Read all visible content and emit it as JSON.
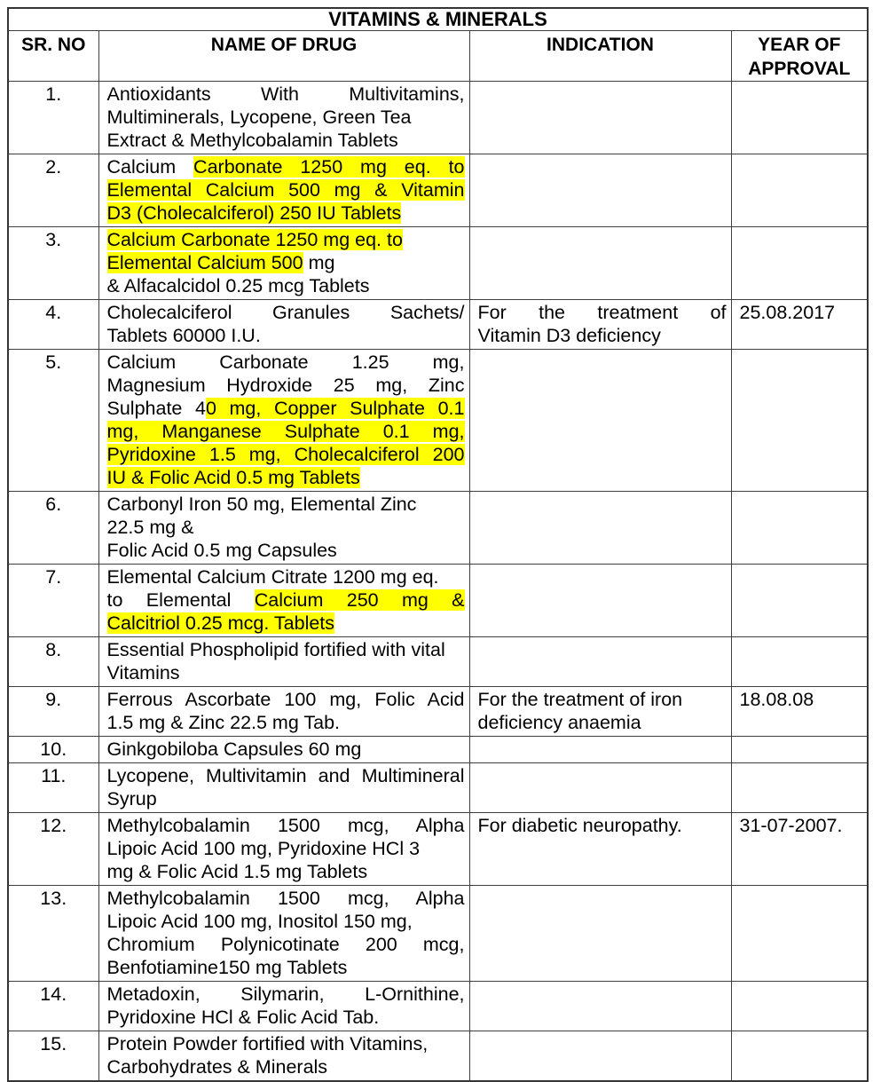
{
  "title": "VITAMINS & MINERALS",
  "header": {
    "sr_no": "SR. NO",
    "drug": "NAME OF DRUG",
    "indication": "INDICATION",
    "year": "YEAR OF APPROVAL"
  },
  "colors": {
    "highlight": "#ffff00",
    "border": "#3f3f3f",
    "text": "#000000"
  },
  "rows": [
    {
      "sr": "1.",
      "drug": [
        {
          "j": 1,
          "parts": [
            [
              "Antioxidants With Multivitamins,",
              0
            ]
          ]
        },
        {
          "j": 0,
          "parts": [
            [
              "Multiminerals, Lycopene, Green Tea",
              0
            ]
          ]
        },
        {
          "j": 0,
          "parts": [
            [
              "Extract & Methylcobalamin Tablets",
              0
            ]
          ]
        }
      ],
      "indication": [],
      "year": ""
    },
    {
      "sr": "2.",
      "drug": [
        {
          "j": 1,
          "parts": [
            [
              "Calcium ",
              0
            ],
            [
              "Carbonate 1250 mg eq. to",
              1
            ]
          ]
        },
        {
          "j": 1,
          "parts": [
            [
              "Elemental Calcium 500 mg & Vitamin",
              1
            ]
          ]
        },
        {
          "j": 0,
          "parts": [
            [
              "D3 (Cholecalciferol) 250 IU Tablets",
              1
            ]
          ]
        }
      ],
      "indication": [],
      "year": ""
    },
    {
      "sr": "3.",
      "drug": [
        {
          "j": 0,
          "parts": [
            [
              "Calcium Carbonate 1250 mg eq. to",
              1
            ]
          ]
        },
        {
          "j": 0,
          "parts": [
            [
              "Elemental Calcium 500",
              1
            ],
            [
              " mg",
              0
            ]
          ]
        },
        {
          "j": 0,
          "parts": [
            [
              "& Alfacalcidol 0.25 mcg Tablets",
              0
            ]
          ]
        }
      ],
      "indication": [],
      "year": ""
    },
    {
      "sr": "4.",
      "drug": [
        {
          "j": 1,
          "parts": [
            [
              "Cholecalciferol Granules Sachets/",
              0
            ]
          ]
        },
        {
          "j": 0,
          "parts": [
            [
              "Tablets 60000 I.U.",
              0
            ]
          ]
        }
      ],
      "indication": [
        {
          "j": 1,
          "parts": [
            [
              "For the treatment of",
              0
            ]
          ]
        },
        {
          "j": 0,
          "parts": [
            [
              "Vitamin D3 deficiency",
              0
            ]
          ]
        }
      ],
      "year": "25.08.2017"
    },
    {
      "sr": "5.",
      "drug": [
        {
          "j": 1,
          "parts": [
            [
              "Calcium Carbonate 1.25 mg,",
              0
            ]
          ]
        },
        {
          "j": 1,
          "parts": [
            [
              "Magnesium Hydroxide 25 mg, Zinc",
              0
            ]
          ]
        },
        {
          "j": 1,
          "parts": [
            [
              "Sulphate 4",
              0
            ],
            [
              "0 mg, Copper Sulphate 0.1",
              1
            ]
          ]
        },
        {
          "j": 1,
          "parts": [
            [
              "mg, Manganese Sulphate 0.1 mg,",
              1
            ]
          ]
        },
        {
          "j": 1,
          "parts": [
            [
              "Pyridoxine 1.5 mg, Cholecalciferol 200",
              1
            ]
          ]
        },
        {
          "j": 0,
          "parts": [
            [
              "IU & Folic Acid 0.5 mg Tablets",
              1
            ]
          ]
        }
      ],
      "indication": [],
      "year": ""
    },
    {
      "sr": "6.",
      "drug": [
        {
          "j": 0,
          "parts": [
            [
              "Carbonyl Iron 50 mg, Elemental Zinc",
              0
            ]
          ]
        },
        {
          "j": 0,
          "parts": [
            [
              "22.5 mg &",
              0
            ]
          ]
        },
        {
          "j": 0,
          "parts": [
            [
              "Folic Acid 0.5 mg Capsules",
              0
            ]
          ]
        }
      ],
      "indication": [],
      "year": ""
    },
    {
      "sr": "7.",
      "drug": [
        {
          "j": 0,
          "parts": [
            [
              "Elemental Calcium Citrate 1200 mg eq.",
              0
            ]
          ]
        },
        {
          "j": 1,
          "parts": [
            [
              "to Elemental ",
              0
            ],
            [
              "Calcium 250 mg &",
              1
            ]
          ]
        },
        {
          "j": 0,
          "parts": [
            [
              "Calcitriol 0.25 mcg. Tablets",
              1
            ]
          ]
        }
      ],
      "indication": [],
      "year": ""
    },
    {
      "sr": "8.",
      "drug": [
        {
          "j": 0,
          "parts": [
            [
              "Essential Phospholipid fortified with vital",
              0
            ]
          ]
        },
        {
          "j": 0,
          "parts": [
            [
              "Vitamins",
              0
            ]
          ]
        }
      ],
      "indication": [],
      "year": ""
    },
    {
      "sr": "9.",
      "drug": [
        {
          "j": 1,
          "parts": [
            [
              "Ferrous Ascorbate 100 mg, Folic Acid",
              0
            ]
          ]
        },
        {
          "j": 0,
          "parts": [
            [
              "1.5 mg & Zinc 22.5 mg Tab.",
              0
            ]
          ]
        }
      ],
      "indication": [
        {
          "j": 0,
          "parts": [
            [
              "For the treatment of iron",
              0
            ]
          ]
        },
        {
          "j": 0,
          "parts": [
            [
              "deficiency anaemia",
              0
            ]
          ]
        }
      ],
      "year": "18.08.08"
    },
    {
      "sr": "10.",
      "drug": [
        {
          "j": 0,
          "parts": [
            [
              "Ginkgobiloba Capsules 60 mg",
              0
            ]
          ]
        }
      ],
      "indication": [],
      "year": ""
    },
    {
      "sr": "11.",
      "drug": [
        {
          "j": 1,
          "parts": [
            [
              "Lycopene, Multivitamin and Multimineral",
              0
            ]
          ]
        },
        {
          "j": 0,
          "parts": [
            [
              "Syrup",
              0
            ]
          ]
        }
      ],
      "indication": [],
      "year": ""
    },
    {
      "sr": "12.",
      "drug": [
        {
          "j": 1,
          "parts": [
            [
              "Methylcobalamin 1500 mcg, Alpha",
              0
            ]
          ]
        },
        {
          "j": 0,
          "parts": [
            [
              "Lipoic Acid 100 mg, Pyridoxine HCl 3",
              0
            ]
          ]
        },
        {
          "j": 0,
          "parts": [
            [
              "mg & Folic Acid 1.5 mg Tablets",
              0
            ]
          ]
        }
      ],
      "indication": [
        {
          "j": 0,
          "parts": [
            [
              "For diabetic neuropathy.",
              0
            ]
          ]
        }
      ],
      "year": "31-07-2007."
    },
    {
      "sr": "13.",
      "drug": [
        {
          "j": 1,
          "parts": [
            [
              "Methylcobalamin 1500 mcg, Alpha",
              0
            ]
          ]
        },
        {
          "j": 0,
          "parts": [
            [
              "Lipoic Acid 100 mg, Inositol 150 mg,",
              0
            ]
          ]
        },
        {
          "j": 1,
          "parts": [
            [
              "Chromium Polynicotinate 200 mcg,",
              0
            ]
          ]
        },
        {
          "j": 0,
          "parts": [
            [
              "Benfotiamine150 mg Tablets",
              0
            ]
          ]
        }
      ],
      "indication": [],
      "year": ""
    },
    {
      "sr": "14.",
      "drug": [
        {
          "j": 1,
          "parts": [
            [
              "Metadoxin, Silymarin, L-Ornithine,",
              0
            ]
          ]
        },
        {
          "j": 0,
          "parts": [
            [
              "Pyridoxine HCl & Folic Acid Tab.",
              0
            ]
          ]
        }
      ],
      "indication": [],
      "year": ""
    },
    {
      "sr": "15.",
      "drug": [
        {
          "j": 0,
          "parts": [
            [
              "Protein Powder fortified with Vitamins,",
              0
            ]
          ]
        },
        {
          "j": 0,
          "parts": [
            [
              "Carbohydrates & Minerals",
              0
            ]
          ]
        }
      ],
      "indication": [],
      "year": ""
    }
  ]
}
